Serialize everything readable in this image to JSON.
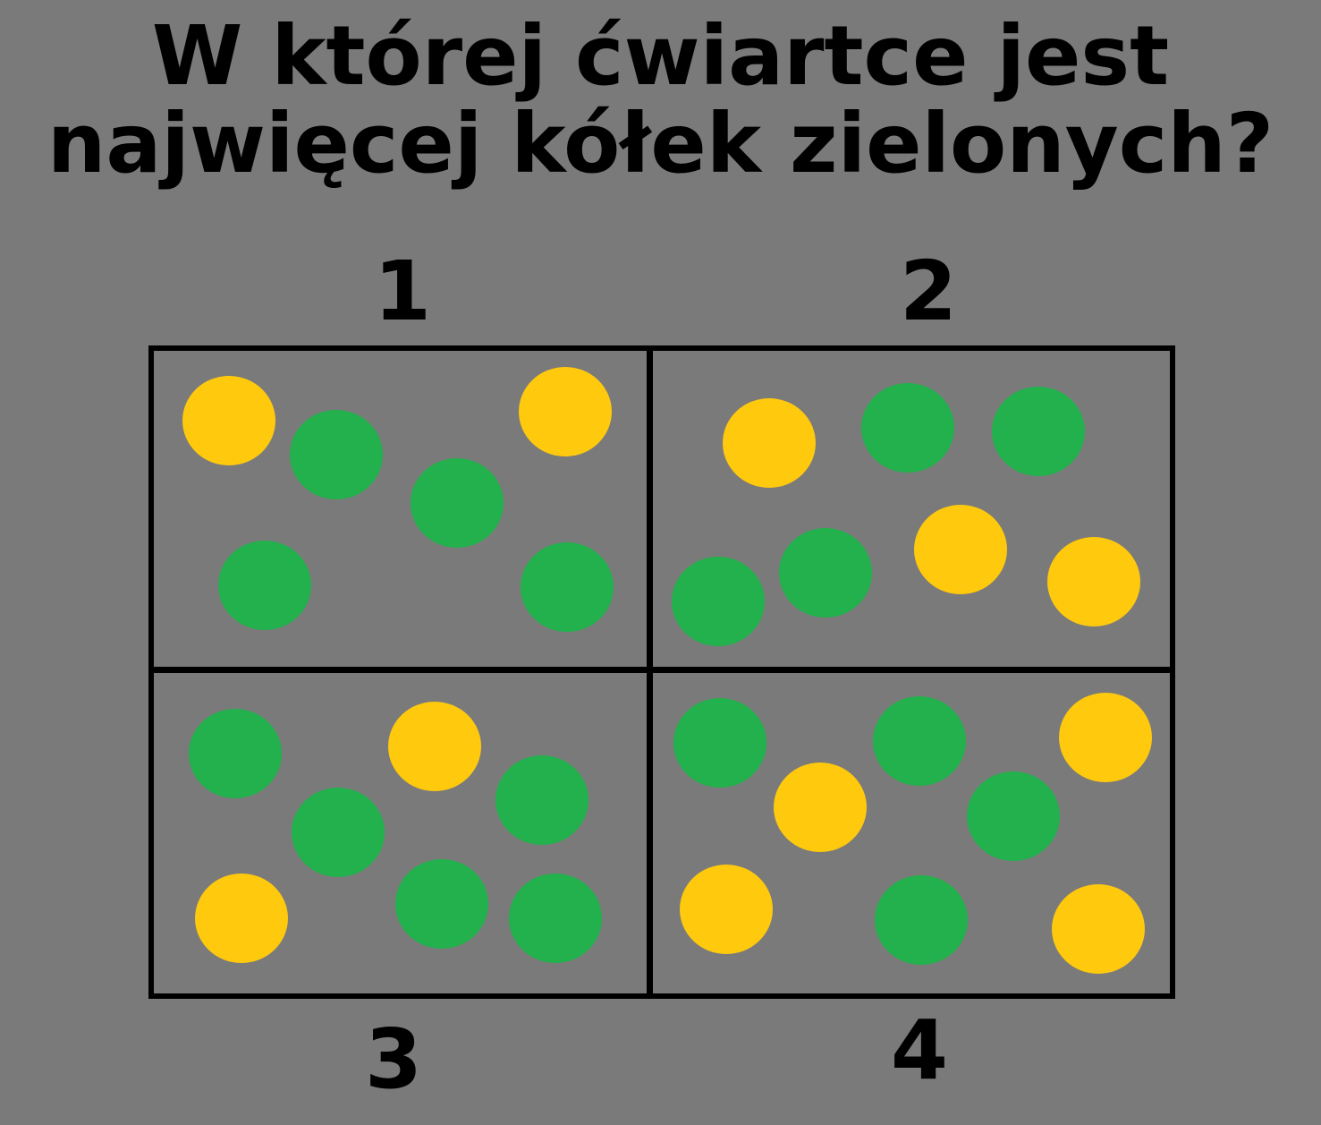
{
  "question": {
    "line1": "W której ćwiartce jest",
    "line2": "najwięcej kółek zielonych?"
  },
  "colors": {
    "background": "#7a7a7a",
    "green": "#22b14c",
    "yellow": "#ffc90e",
    "line": "#000000"
  },
  "quadrants": [
    {
      "label": "1",
      "green_count": 4,
      "yellow_count": 2
    },
    {
      "label": "2",
      "green_count": 4,
      "yellow_count": 3
    },
    {
      "label": "3",
      "green_count": 5,
      "yellow_count": 2
    },
    {
      "label": "4",
      "green_count": 4,
      "yellow_count": 4
    }
  ]
}
